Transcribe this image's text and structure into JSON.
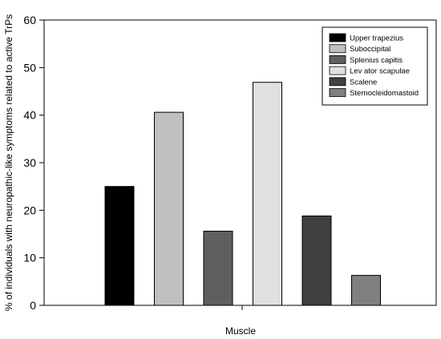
{
  "chart_data": {
    "type": "bar",
    "title": "",
    "xlabel": "Muscle",
    "ylabel": "% of individuals with neuropathic-like symptoms related to active TrPs",
    "ylim": [
      0,
      60
    ],
    "yticks": [
      0,
      10,
      20,
      30,
      40,
      50,
      60
    ],
    "grid": false,
    "legend_position": "top-right",
    "categories": [
      "Upper trapezius",
      "Suboccipital",
      "Splenius capitis",
      "Lev ator scapulae",
      "Scalene",
      "Sternocleidomastoid"
    ],
    "values": [
      25,
      40.6,
      15.6,
      46.9,
      18.8,
      6.3
    ],
    "colors": [
      "#000000",
      "#c0c0c0",
      "#5f5f5f",
      "#e0e0e0",
      "#404040",
      "#808080"
    ]
  }
}
